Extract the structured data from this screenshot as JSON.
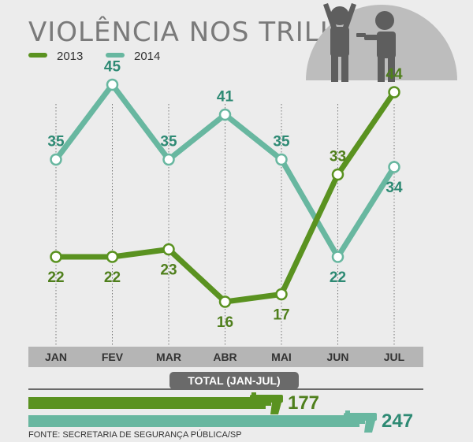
{
  "chart_data": {
    "type": "line",
    "title": "VIOLÊNCIA NOS TRILHOS",
    "categories": [
      "JAN",
      "FEV",
      "MAR",
      "ABR",
      "MAI",
      "JUN",
      "JUL"
    ],
    "series": [
      {
        "name": "2013",
        "color": "#5a9220",
        "values": [
          22,
          22,
          23,
          16,
          17,
          33,
          44
        ]
      },
      {
        "name": "2014",
        "color": "#68b7a0",
        "values": [
          35,
          45,
          35,
          41,
          35,
          22,
          34
        ]
      }
    ],
    "ylim": [
      10,
      50
    ],
    "legend_position": "top-left",
    "totals": {
      "label": "TOTAL (JAN-JUL)",
      "items": [
        {
          "series": "2013",
          "value": 177
        },
        {
          "series": "2014",
          "value": 247
        }
      ]
    },
    "source": "FONTE: SECRETARIA DE SEGURANÇA PÚBLICA/SP"
  },
  "icons": [
    "hands-up-person-icon",
    "gunman-icon",
    "pistol-icon"
  ]
}
